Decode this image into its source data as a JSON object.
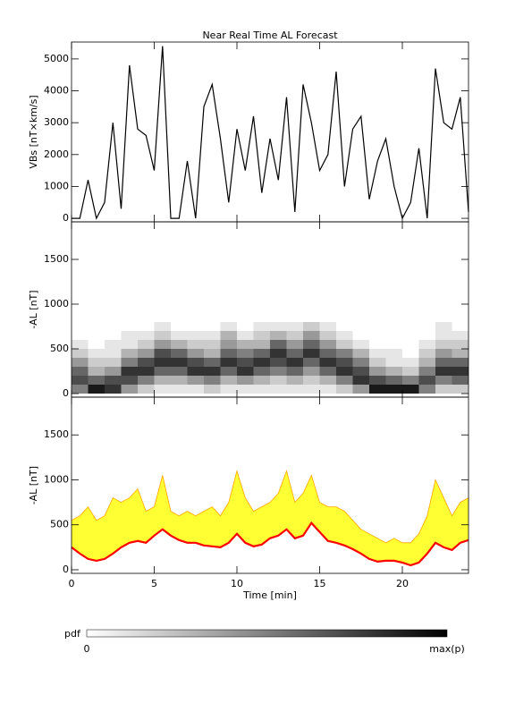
{
  "chart_data": [
    {
      "type": "line",
      "title": "Near Real Time AL Forecast",
      "ylabel": "VBs [nT×km/s]",
      "color": "#000000",
      "x": [
        0,
        0.5,
        1,
        1.5,
        2,
        2.5,
        3,
        3.5,
        4,
        4.5,
        5,
        5.5,
        6,
        6.5,
        7,
        7.5,
        8,
        8.5,
        9,
        9.5,
        10,
        10.5,
        11,
        11.5,
        12,
        12.5,
        13,
        13.5,
        14,
        14.5,
        15,
        15.5,
        16,
        16.5,
        17,
        17.5,
        18,
        18.5,
        19,
        19.5,
        20,
        20.5,
        21,
        21.5,
        22,
        22.5,
        23,
        23.5,
        24
      ],
      "values": [
        0,
        0,
        1200,
        0,
        500,
        3000,
        300,
        4800,
        2800,
        2600,
        1500,
        5400,
        0,
        0,
        1800,
        0,
        3500,
        4200,
        2500,
        500,
        2800,
        1500,
        3200,
        800,
        2500,
        1200,
        3800,
        200,
        4200,
        3000,
        1500,
        2000,
        4600,
        1000,
        2800,
        3200,
        600,
        1800,
        2500,
        1000,
        0,
        500,
        2200,
        0,
        4700,
        3000,
        2800,
        3800,
        200
      ],
      "xlim": [
        0,
        24
      ],
      "xticks": [
        0,
        5,
        10,
        15,
        20
      ],
      "ylim": [
        -110,
        5530
      ],
      "yticks": [
        0,
        1000,
        2000,
        3000,
        4000,
        5000
      ]
    },
    {
      "type": "heatmap",
      "ylabel": "-AL [nT]",
      "x_bins": [
        0,
        1,
        2,
        3,
        4,
        5,
        6,
        7,
        8,
        9,
        10,
        11,
        12,
        13,
        14,
        15,
        16,
        17,
        18,
        19,
        20,
        21,
        22,
        23,
        24
      ],
      "y_bins": [
        0,
        100,
        200,
        300,
        400,
        500,
        600,
        700,
        800
      ],
      "z": [
        [
          0.5,
          0.7,
          0.6,
          0.4,
          0.2,
          0.1,
          0,
          0
        ],
        [
          0.9,
          0.6,
          0.3,
          0.2,
          0.1,
          0,
          0,
          0
        ],
        [
          0.8,
          0.7,
          0.4,
          0.2,
          0.1,
          0.1,
          0,
          0
        ],
        [
          0.4,
          0.7,
          0.8,
          0.5,
          0.3,
          0.1,
          0.1,
          0
        ],
        [
          0.2,
          0.5,
          0.8,
          0.7,
          0.4,
          0.2,
          0.1,
          0
        ],
        [
          0.1,
          0.3,
          0.6,
          0.8,
          0.7,
          0.4,
          0.2,
          0.1
        ],
        [
          0.1,
          0.3,
          0.6,
          0.8,
          0.6,
          0.3,
          0.1,
          0
        ],
        [
          0.1,
          0.4,
          0.8,
          0.7,
          0.4,
          0.2,
          0.1,
          0
        ],
        [
          0.2,
          0.5,
          0.8,
          0.6,
          0.3,
          0.2,
          0.1,
          0
        ],
        [
          0.1,
          0.3,
          0.6,
          0.8,
          0.6,
          0.4,
          0.3,
          0.1
        ],
        [
          0.1,
          0.4,
          0.8,
          0.7,
          0.5,
          0.3,
          0.1,
          0
        ],
        [
          0.1,
          0.3,
          0.6,
          0.8,
          0.6,
          0.3,
          0.2,
          0.1
        ],
        [
          0.1,
          0.2,
          0.5,
          0.7,
          0.8,
          0.6,
          0.3,
          0.1
        ],
        [
          0.1,
          0.3,
          0.6,
          0.8,
          0.6,
          0.4,
          0.2,
          0.1
        ],
        [
          0.1,
          0.2,
          0.4,
          0.6,
          0.8,
          0.6,
          0.4,
          0.2
        ],
        [
          0.1,
          0.3,
          0.6,
          0.8,
          0.6,
          0.4,
          0.2,
          0.1
        ],
        [
          0.2,
          0.5,
          0.8,
          0.7,
          0.5,
          0.2,
          0.1,
          0
        ],
        [
          0.4,
          0.8,
          0.7,
          0.5,
          0.3,
          0.1,
          0,
          0
        ],
        [
          0.9,
          0.7,
          0.4,
          0.2,
          0.1,
          0,
          0,
          0
        ],
        [
          0.9,
          0.6,
          0.3,
          0.1,
          0.1,
          0,
          0,
          0
        ],
        [
          0.9,
          0.5,
          0.2,
          0.1,
          0,
          0,
          0,
          0
        ],
        [
          0.5,
          0.7,
          0.5,
          0.3,
          0.2,
          0.1,
          0,
          0
        ],
        [
          0.2,
          0.5,
          0.8,
          0.6,
          0.4,
          0.2,
          0.1,
          0.1
        ],
        [
          0.2,
          0.6,
          0.8,
          0.6,
          0.3,
          0.2,
          0.1,
          0
        ]
      ],
      "xlim": [
        0,
        24
      ],
      "xticks": [
        0,
        5,
        10,
        15,
        20
      ],
      "ylim": [
        -40,
        1920
      ],
      "yticks": [
        0,
        500,
        1000,
        1500
      ],
      "colorbar": {
        "label": "pdf",
        "min_label": "0",
        "max_label": "max(p)"
      }
    },
    {
      "type": "band",
      "ylabel": "-AL [nT]",
      "xlabel": "Time [min]",
      "color": "#ff0000",
      "band_color": "#ffff33",
      "band_edge_color": "#ffa500",
      "x": [
        0,
        0.5,
        1,
        1.5,
        2,
        2.5,
        3,
        3.5,
        4,
        4.5,
        5,
        5.5,
        6,
        6.5,
        7,
        7.5,
        8,
        8.5,
        9,
        9.5,
        10,
        10.5,
        11,
        11.5,
        12,
        12.5,
        13,
        13.5,
        14,
        14.5,
        15,
        15.5,
        16,
        16.5,
        17,
        17.5,
        18,
        18.5,
        19,
        19.5,
        20,
        20.5,
        21,
        21.5,
        22,
        22.5,
        23,
        23.5,
        24
      ],
      "values": [
        250,
        180,
        120,
        100,
        120,
        180,
        250,
        300,
        320,
        300,
        380,
        450,
        380,
        330,
        300,
        300,
        270,
        260,
        250,
        300,
        400,
        300,
        260,
        280,
        350,
        380,
        450,
        350,
        380,
        520,
        420,
        320,
        300,
        270,
        230,
        180,
        120,
        90,
        100,
        100,
        80,
        50,
        80,
        180,
        300,
        250,
        220,
        300,
        330
      ],
      "band_upper": [
        550,
        600,
        700,
        550,
        600,
        800,
        750,
        800,
        900,
        650,
        700,
        1050,
        650,
        600,
        650,
        600,
        650,
        700,
        600,
        750,
        1100,
        800,
        650,
        700,
        750,
        850,
        1100,
        750,
        850,
        1050,
        750,
        700,
        700,
        650,
        550,
        450,
        400,
        350,
        300,
        350,
        300,
        300,
        400,
        600,
        1000,
        800,
        600,
        750,
        800
      ],
      "xlim": [
        0,
        24
      ],
      "xticks": [
        0,
        5,
        10,
        15,
        20
      ],
      "ylim": [
        -40,
        1920
      ],
      "yticks": [
        0,
        500,
        1000,
        1500
      ]
    }
  ]
}
